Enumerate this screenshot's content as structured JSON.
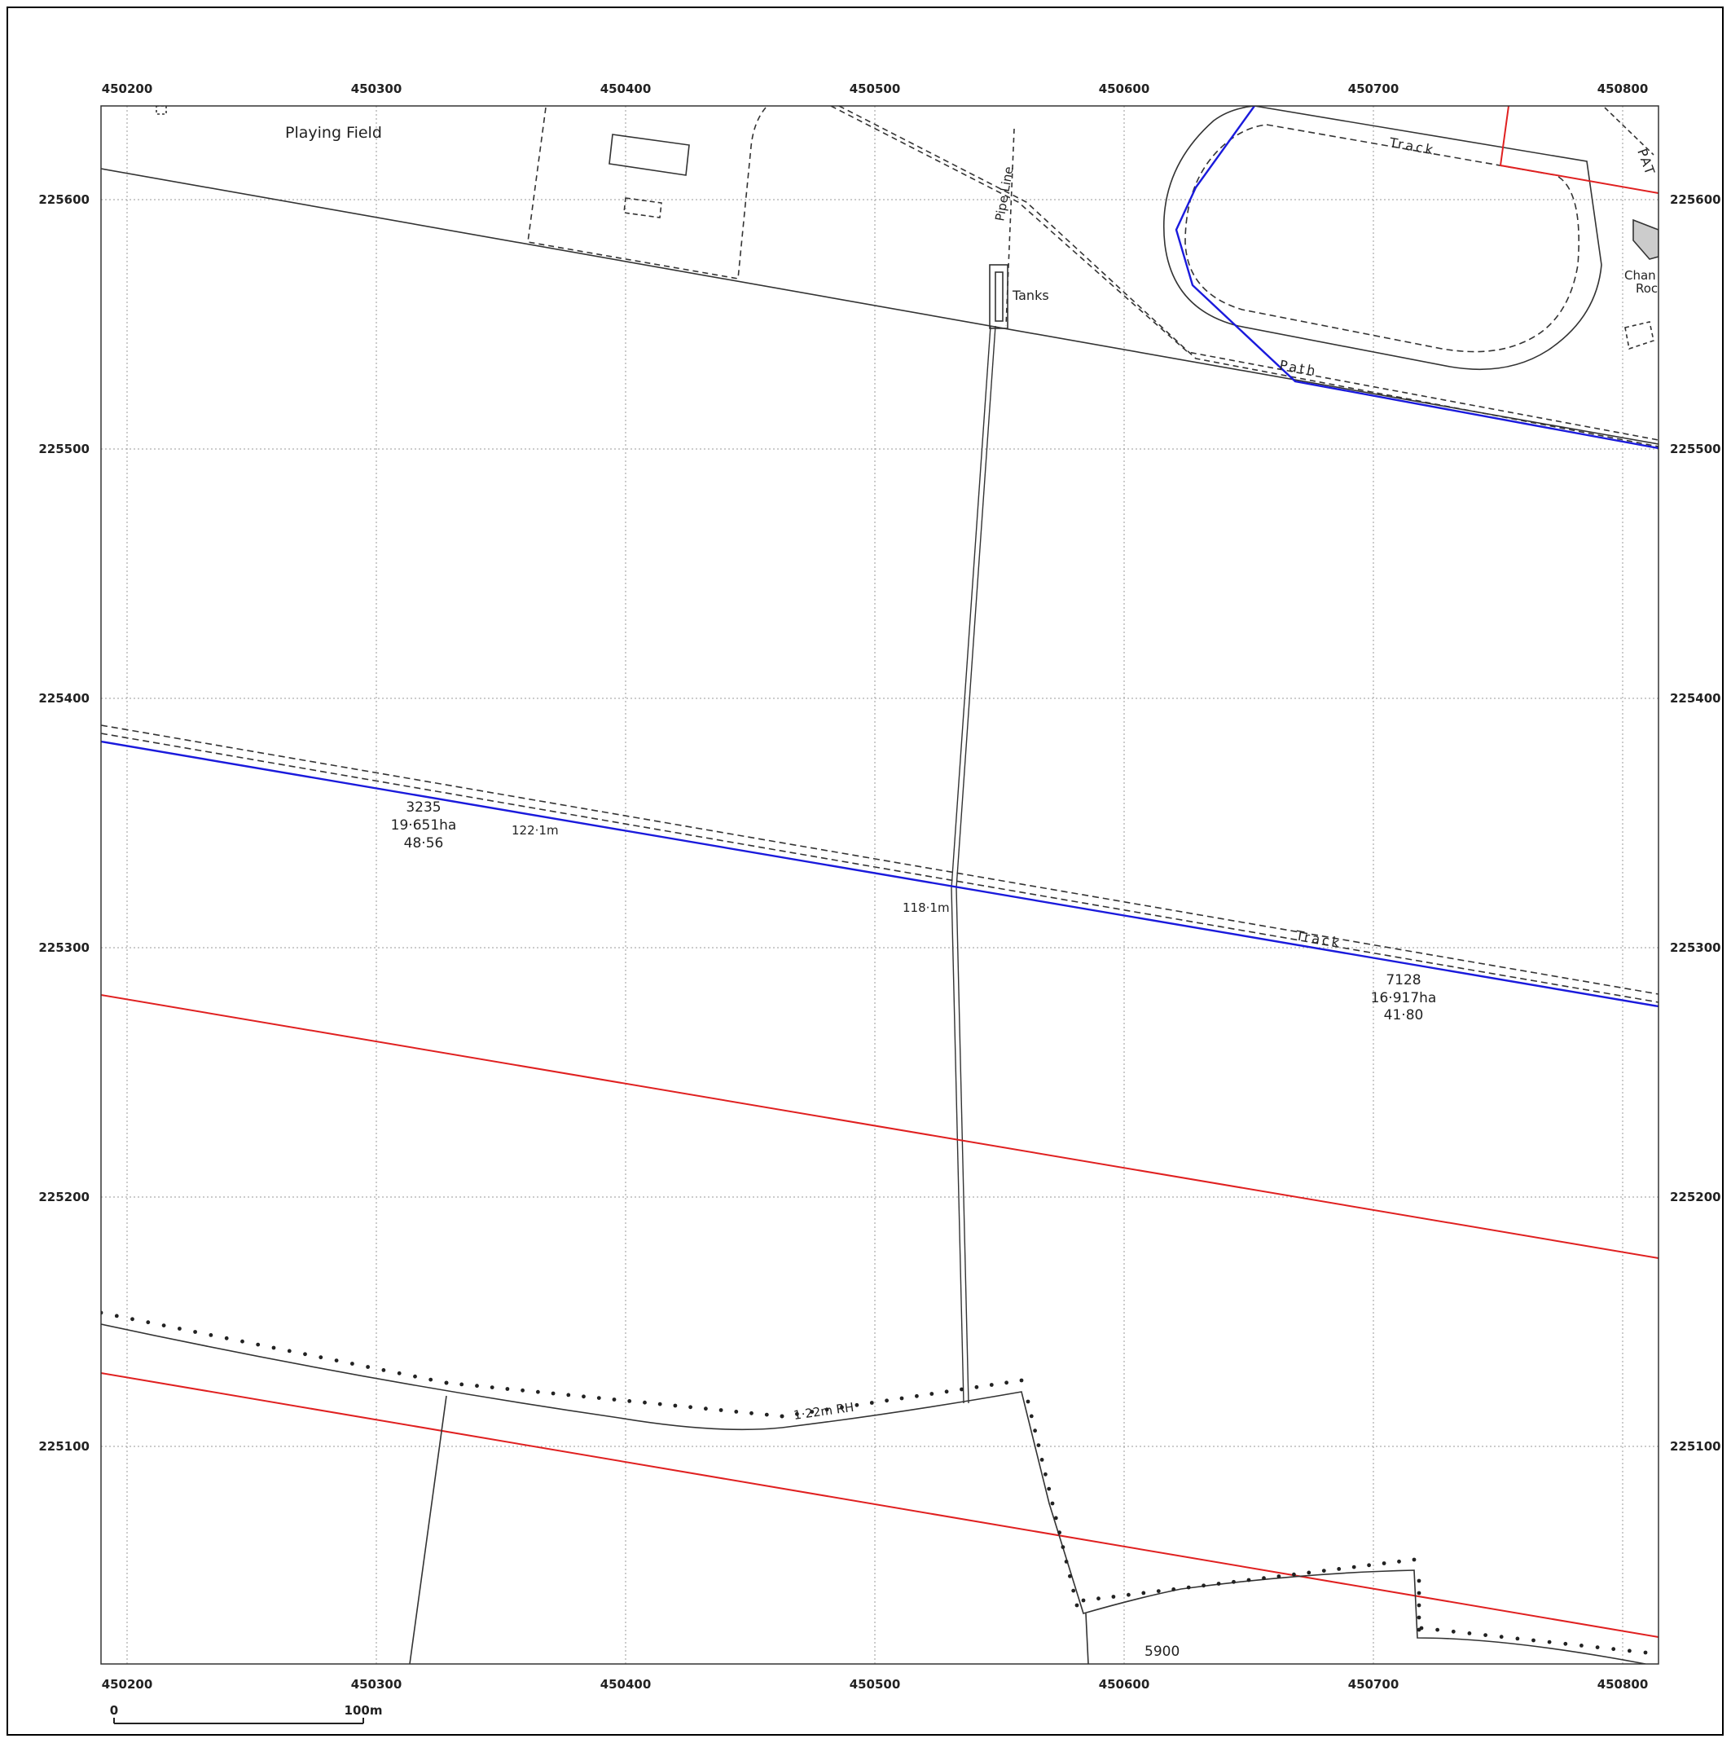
{
  "map": {
    "x_ticks": [
      "450200",
      "450300",
      "450400",
      "450500",
      "450600",
      "450700",
      "450800"
    ],
    "y_ticks": [
      "225600",
      "225500",
      "225400",
      "225300",
      "225200",
      "225100"
    ],
    "labels": {
      "playing_field": "Playing Field",
      "pipe_line": "Pipe Line",
      "tanks": "Tanks",
      "track_top": "Track",
      "path": "Path",
      "track_mid": "Track",
      "pat": "PAT",
      "chan": "Chan",
      "roc": "Roc",
      "parcel_3235_id": "3235",
      "parcel_3235_ha": "19·651ha",
      "parcel_3235_ac": "48·56",
      "elev_122": "122·1m",
      "elev_118": "118·1m",
      "parcel_7128_id": "7128",
      "parcel_7128_ha": "16·917ha",
      "parcel_7128_ac": "41·80",
      "hedge": "1·22m RH",
      "parcel_5900_id": "5900"
    },
    "scale_bar": {
      "start": "0",
      "end": "100m"
    },
    "colors": {
      "boundary_blue": "#1a1adc",
      "boundary_red": "#e02020",
      "linework": "#333333",
      "grid": "#9a9a9a"
    }
  }
}
